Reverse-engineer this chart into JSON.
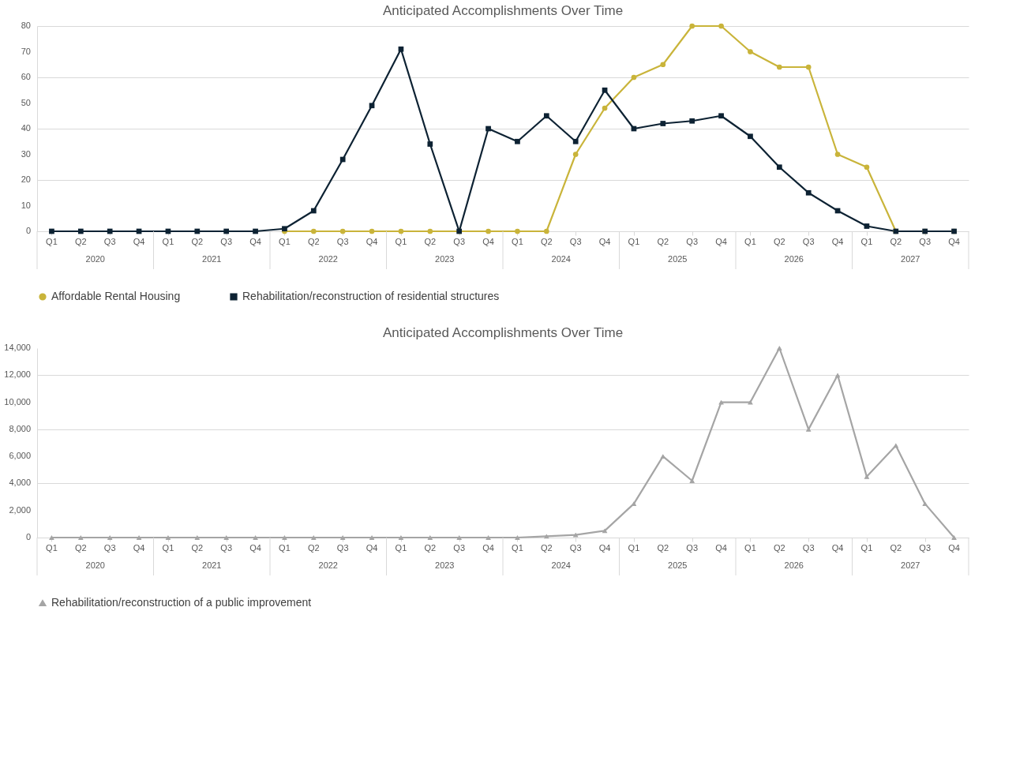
{
  "chart_data": [
    {
      "type": "line",
      "title": "Anticipated Accomplishments Over Time",
      "categories": [
        "Q1",
        "Q2",
        "Q3",
        "Q4",
        "Q1",
        "Q2",
        "Q3",
        "Q4",
        "Q1",
        "Q2",
        "Q3",
        "Q4",
        "Q1",
        "Q2",
        "Q3",
        "Q4",
        "Q1",
        "Q2",
        "Q3",
        "Q4",
        "Q1",
        "Q2",
        "Q3",
        "Q4",
        "Q1",
        "Q2",
        "Q3",
        "Q4",
        "Q1",
        "Q2",
        "Q3",
        "Q4"
      ],
      "annotations": [
        "2020",
        "2021",
        "2022",
        "2023",
        "2024",
        "2025",
        "2026",
        "2027"
      ],
      "series": [
        {
          "name": "Affordable Rental Housing",
          "color": "#c9b43a",
          "marker": "circle",
          "values": [
            null,
            null,
            null,
            null,
            null,
            null,
            null,
            null,
            0,
            0,
            0,
            0,
            0,
            0,
            0,
            0,
            0,
            0,
            30,
            48,
            60,
            65,
            80,
            80,
            70,
            64,
            64,
            30,
            25,
            0,
            0,
            0
          ]
        },
        {
          "name": "Rehabilitation/reconstruction of residential structures",
          "color": "#0d2233",
          "marker": "square",
          "values": [
            0,
            0,
            0,
            0,
            0,
            0,
            0,
            0,
            1,
            8,
            28,
            49,
            71,
            34,
            0,
            40,
            35,
            45,
            35,
            55,
            40,
            42,
            43,
            45,
            37,
            25,
            15,
            8,
            2,
            0,
            0,
            0
          ]
        }
      ],
      "ylim": [
        0,
        80
      ],
      "yticks": [
        0,
        10,
        20,
        30,
        40,
        50,
        60,
        70,
        80
      ],
      "grid": "y",
      "legend": "bottom"
    },
    {
      "type": "line",
      "title": "Anticipated Accomplishments Over Time",
      "categories": [
        "Q1",
        "Q2",
        "Q3",
        "Q4",
        "Q1",
        "Q2",
        "Q3",
        "Q4",
        "Q1",
        "Q2",
        "Q3",
        "Q4",
        "Q1",
        "Q2",
        "Q3",
        "Q4",
        "Q1",
        "Q2",
        "Q3",
        "Q4",
        "Q1",
        "Q2",
        "Q3",
        "Q4",
        "Q1",
        "Q2",
        "Q3",
        "Q4",
        "Q1",
        "Q2",
        "Q3",
        "Q4"
      ],
      "annotations": [
        "2020",
        "2021",
        "2022",
        "2023",
        "2024",
        "2025",
        "2026",
        "2027"
      ],
      "series": [
        {
          "name": "Rehabilitation/reconstruction of a public improvement",
          "color": "#a5a5a5",
          "marker": "triangle",
          "values": [
            0,
            0,
            0,
            0,
            0,
            0,
            0,
            0,
            0,
            0,
            0,
            0,
            0,
            0,
            0,
            0,
            0,
            100,
            200,
            500,
            2500,
            6000,
            4200,
            10000,
            10000,
            14000,
            8000,
            12000,
            4500,
            6800,
            2500,
            0
          ]
        }
      ],
      "ylim": [
        0,
        14000
      ],
      "yticks": [
        0,
        {
          "value": 2000,
          "label": "2,000"
        },
        {
          "value": 4000,
          "label": "4,000"
        },
        {
          "value": 6000,
          "label": "6,000"
        },
        {
          "value": 8000,
          "label": "8,000"
        },
        {
          "value": 10000,
          "label": "10,000"
        },
        {
          "value": 12000,
          "label": "12,000"
        },
        {
          "value": 14000,
          "label": "14,000"
        }
      ],
      "grid": "y",
      "legend": "bottom left"
    }
  ]
}
